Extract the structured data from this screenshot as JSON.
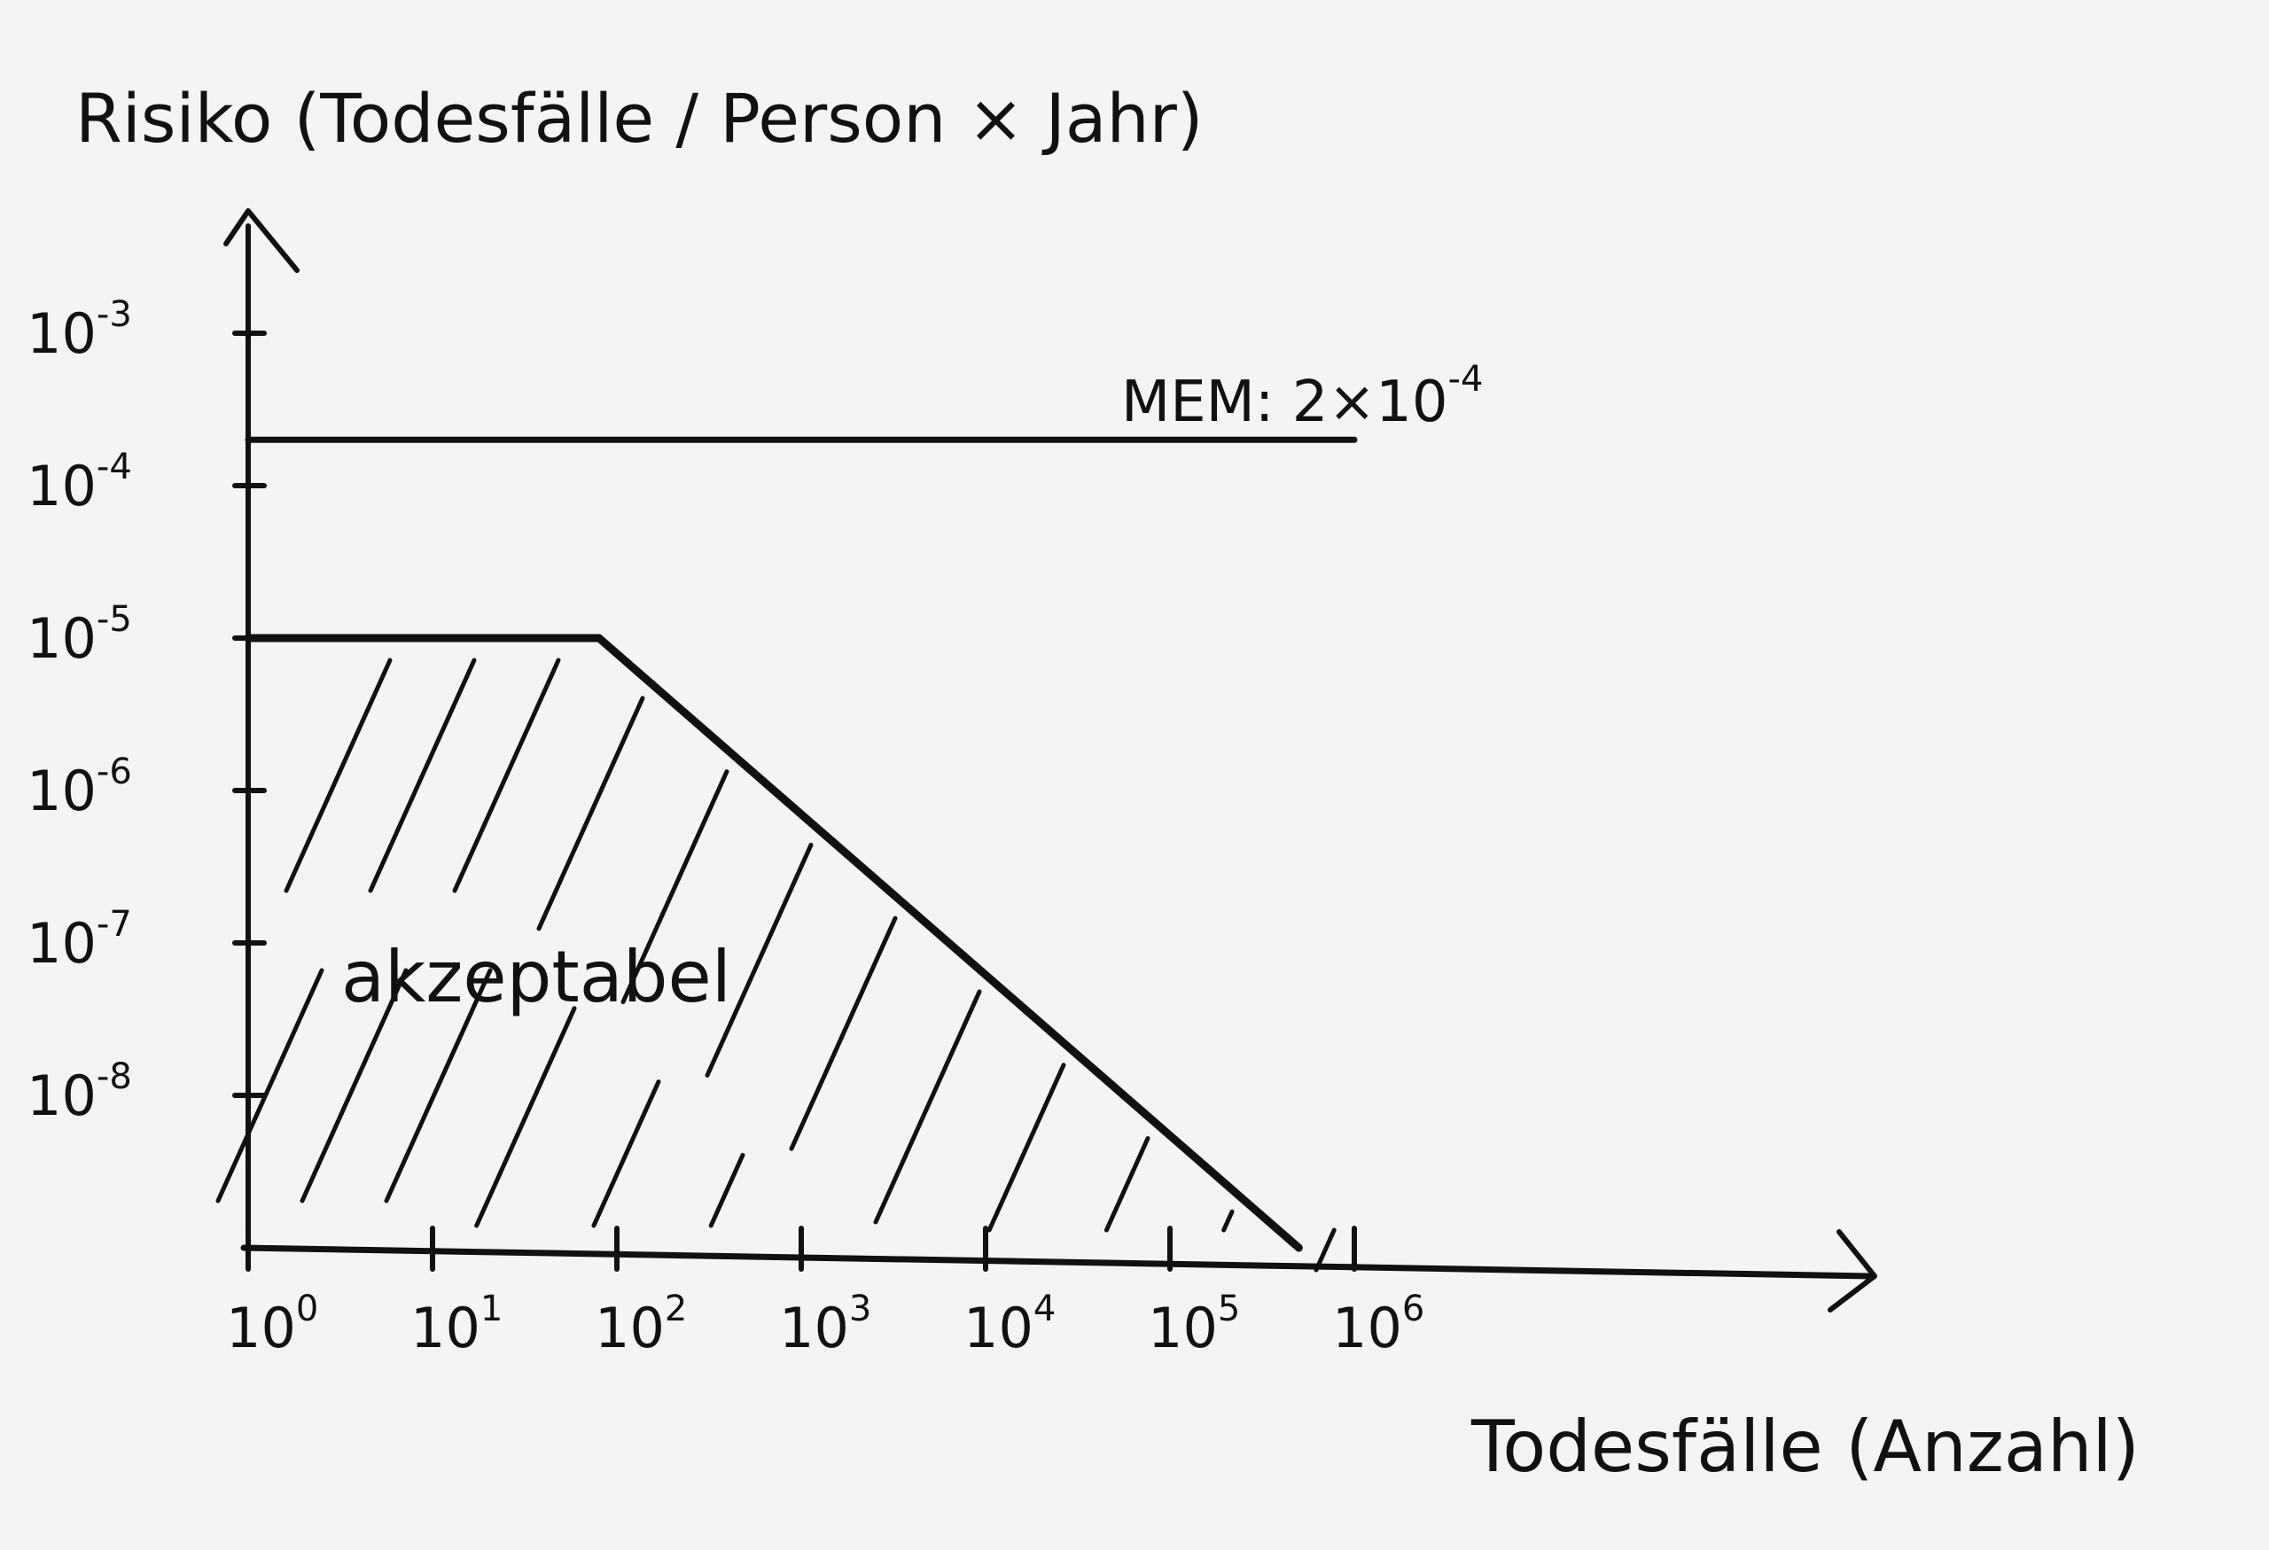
{
  "chart_data": {
    "type": "line",
    "title": "",
    "xlabel": "Todesfälle (Anzahl)",
    "ylabel": "Risiko (Todesfälle / Person × Jahr)",
    "x_scale": "log",
    "y_scale": "log",
    "x_ticks": [
      {
        "base": "10",
        "exp": "0"
      },
      {
        "base": "10",
        "exp": "1"
      },
      {
        "base": "10",
        "exp": "2"
      },
      {
        "base": "10",
        "exp": "3"
      },
      {
        "base": "10",
        "exp": "4"
      },
      {
        "base": "10",
        "exp": "5"
      },
      {
        "base": "10",
        "exp": "6"
      }
    ],
    "y_ticks": [
      {
        "base": "10",
        "exp": "-3"
      },
      {
        "base": "10",
        "exp": "-4"
      },
      {
        "base": "10",
        "exp": "-5"
      },
      {
        "base": "10",
        "exp": "-6"
      },
      {
        "base": "10",
        "exp": "-7"
      },
      {
        "base": "10",
        "exp": "-8"
      }
    ],
    "xlim": [
      1,
      10000000
    ],
    "ylim": [
      1e-09,
      0.01
    ],
    "grid": false,
    "series": [
      {
        "name": "",
        "x": [
          1,
          80,
          500000
        ],
        "y": [
          1e-05,
          1e-05,
          1e-09
        ]
      },
      {
        "name": "",
        "x": [
          1,
          1000000
        ],
        "y": [
          0.0002,
          0.0002
        ]
      }
    ],
    "annotations": {
      "mem_prefix": "MEM: 2×10",
      "mem_exp": "-4",
      "region_label": "akzeptabel"
    },
    "color": "#111111"
  }
}
